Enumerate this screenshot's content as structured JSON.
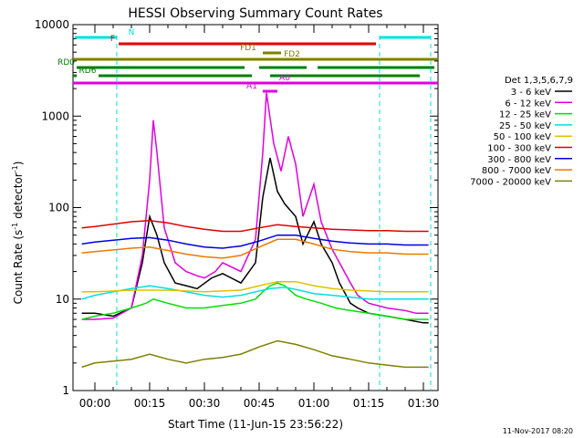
{
  "chart_data": {
    "type": "line",
    "title": "HESSI Observing Summary Count Rates",
    "xlabel": "Start Time (11-Jun-15 23:56:22)",
    "ylabel_main": "Count Rate (s",
    "ylabel_sup1": "-1",
    "ylabel_mid": " detector",
    "ylabel_sup2": "-1",
    "ylabel_end": ")",
    "y_scale": "log",
    "ylim": [
      1,
      10000
    ],
    "xlim_minutes": [
      -6,
      94
    ],
    "x_ticks": [
      {
        "minutes": 0,
        "label": "00:00"
      },
      {
        "minutes": 15,
        "label": "00:15"
      },
      {
        "minutes": 30,
        "label": "00:30"
      },
      {
        "minutes": 45,
        "label": "00:45"
      },
      {
        "minutes": 60,
        "label": "01:00"
      },
      {
        "minutes": 75,
        "label": "01:15"
      },
      {
        "minutes": 90,
        "label": "01:30"
      }
    ],
    "y_ticks": [
      {
        "value": 1,
        "label": "1"
      },
      {
        "value": 10,
        "label": "10"
      },
      {
        "value": 100,
        "label": "100"
      },
      {
        "value": 1000,
        "label": "1000"
      },
      {
        "value": 10000,
        "label": "10000"
      }
    ],
    "legend_title": "Det 1,3,5,6,7,9",
    "legend_position": "right",
    "series": [
      {
        "name": "3 - 6 keV",
        "color": "#000000",
        "points": [
          [
            -3.6,
            7
          ],
          [
            0,
            7
          ],
          [
            5,
            6.5
          ],
          [
            10,
            8
          ],
          [
            13,
            25
          ],
          [
            15,
            80
          ],
          [
            17,
            50
          ],
          [
            19,
            25
          ],
          [
            22,
            15
          ],
          [
            25,
            14
          ],
          [
            28,
            13
          ],
          [
            32,
            17
          ],
          [
            35,
            19
          ],
          [
            40,
            15
          ],
          [
            44,
            25
          ],
          [
            46,
            130
          ],
          [
            48,
            350
          ],
          [
            50,
            150
          ],
          [
            52,
            110
          ],
          [
            55,
            80
          ],
          [
            57,
            40
          ],
          [
            60,
            70
          ],
          [
            62,
            40
          ],
          [
            65,
            25
          ],
          [
            67,
            15
          ],
          [
            70,
            9
          ],
          [
            72,
            8
          ],
          [
            75,
            7
          ],
          [
            80,
            6.5
          ],
          [
            85,
            6
          ],
          [
            90,
            5.5
          ],
          [
            91.4,
            5.5
          ]
        ]
      },
      {
        "name": "6 - 12 keV",
        "color": "#e000e0",
        "points": [
          [
            -3.6,
            6
          ],
          [
            0,
            6
          ],
          [
            5,
            6.2
          ],
          [
            10,
            8
          ],
          [
            13,
            30
          ],
          [
            15,
            200
          ],
          [
            16,
            900
          ],
          [
            17,
            400
          ],
          [
            19,
            60
          ],
          [
            22,
            25
          ],
          [
            25,
            20
          ],
          [
            28,
            18
          ],
          [
            30,
            17
          ],
          [
            33,
            20
          ],
          [
            35,
            25
          ],
          [
            40,
            20
          ],
          [
            44,
            45
          ],
          [
            46,
            400
          ],
          [
            47,
            1800
          ],
          [
            49,
            500
          ],
          [
            51,
            250
          ],
          [
            53,
            600
          ],
          [
            55,
            300
          ],
          [
            57,
            80
          ],
          [
            60,
            180
          ],
          [
            62,
            70
          ],
          [
            65,
            35
          ],
          [
            67,
            25
          ],
          [
            70,
            15
          ],
          [
            72,
            11
          ],
          [
            75,
            9
          ],
          [
            80,
            8
          ],
          [
            85,
            7.5
          ],
          [
            88,
            7
          ],
          [
            91.4,
            7
          ]
        ]
      },
      {
        "name": "12 - 25 keV",
        "color": "#00e000",
        "points": [
          [
            -3.6,
            6
          ],
          [
            0,
            6.5
          ],
          [
            5,
            7
          ],
          [
            10,
            8
          ],
          [
            14,
            9
          ],
          [
            16,
            10
          ],
          [
            20,
            9
          ],
          [
            25,
            8
          ],
          [
            30,
            8
          ],
          [
            35,
            8.5
          ],
          [
            40,
            9
          ],
          [
            44,
            10
          ],
          [
            46,
            12
          ],
          [
            48,
            14
          ],
          [
            50,
            15
          ],
          [
            52,
            14
          ],
          [
            55,
            11
          ],
          [
            58,
            10
          ],
          [
            62,
            9
          ],
          [
            66,
            8
          ],
          [
            70,
            7.5
          ],
          [
            75,
            7
          ],
          [
            80,
            6.5
          ],
          [
            85,
            6
          ],
          [
            90,
            6
          ],
          [
            91.4,
            6
          ]
        ]
      },
      {
        "name": "25 - 50 keV",
        "color": "#00e0e0",
        "points": [
          [
            -3.6,
            10
          ],
          [
            0,
            11
          ],
          [
            5,
            12
          ],
          [
            10,
            13
          ],
          [
            15,
            14
          ],
          [
            20,
            13
          ],
          [
            25,
            12
          ],
          [
            30,
            11
          ],
          [
            35,
            10.5
          ],
          [
            40,
            11
          ],
          [
            44,
            12
          ],
          [
            48,
            13
          ],
          [
            52,
            13.5
          ],
          [
            56,
            12.5
          ],
          [
            60,
            11.5
          ],
          [
            65,
            11
          ],
          [
            70,
            10.5
          ],
          [
            75,
            10
          ],
          [
            80,
            10
          ],
          [
            85,
            10
          ],
          [
            90,
            10
          ],
          [
            91.4,
            10
          ]
        ]
      },
      {
        "name": "50 - 100 keV",
        "color": "#e0c000",
        "points": [
          [
            -3.6,
            12
          ],
          [
            0,
            12
          ],
          [
            10,
            12.5
          ],
          [
            20,
            12.5
          ],
          [
            30,
            12
          ],
          [
            40,
            12.5
          ],
          [
            45,
            14
          ],
          [
            50,
            15.5
          ],
          [
            55,
            15.5
          ],
          [
            60,
            14
          ],
          [
            65,
            13
          ],
          [
            70,
            12.5
          ],
          [
            80,
            12
          ],
          [
            90,
            12
          ],
          [
            91.4,
            12
          ]
        ]
      },
      {
        "name": "100 - 300 keV",
        "color": "#e00000",
        "points": [
          [
            -3.6,
            60
          ],
          [
            0,
            62
          ],
          [
            10,
            70
          ],
          [
            15,
            72
          ],
          [
            20,
            68
          ],
          [
            25,
            62
          ],
          [
            30,
            58
          ],
          [
            35,
            55
          ],
          [
            40,
            55
          ],
          [
            45,
            60
          ],
          [
            50,
            65
          ],
          [
            55,
            62
          ],
          [
            60,
            60
          ],
          [
            65,
            58
          ],
          [
            70,
            57
          ],
          [
            75,
            56
          ],
          [
            80,
            56
          ],
          [
            85,
            55
          ],
          [
            90,
            55
          ],
          [
            91.4,
            55
          ]
        ]
      },
      {
        "name": "300 - 800 keV",
        "color": "#0000e0",
        "points": [
          [
            -3.6,
            40
          ],
          [
            0,
            42
          ],
          [
            10,
            46
          ],
          [
            15,
            47
          ],
          [
            20,
            44
          ],
          [
            25,
            40
          ],
          [
            30,
            37
          ],
          [
            35,
            36
          ],
          [
            40,
            38
          ],
          [
            45,
            43
          ],
          [
            50,
            50
          ],
          [
            55,
            50
          ],
          [
            60,
            46
          ],
          [
            65,
            43
          ],
          [
            70,
            41
          ],
          [
            75,
            40
          ],
          [
            80,
            40
          ],
          [
            85,
            39
          ],
          [
            90,
            39
          ],
          [
            91.4,
            39
          ]
        ]
      },
      {
        "name": "800 - 7000 keV",
        "color": "#f07800",
        "points": [
          [
            -3.6,
            32
          ],
          [
            0,
            33
          ],
          [
            10,
            36
          ],
          [
            15,
            37
          ],
          [
            20,
            34
          ],
          [
            25,
            31
          ],
          [
            30,
            29
          ],
          [
            35,
            28
          ],
          [
            40,
            30
          ],
          [
            45,
            37
          ],
          [
            50,
            45
          ],
          [
            55,
            45
          ],
          [
            60,
            40
          ],
          [
            65,
            35
          ],
          [
            70,
            33
          ],
          [
            75,
            32
          ],
          [
            80,
            32
          ],
          [
            85,
            31
          ],
          [
            90,
            31
          ],
          [
            91.4,
            31
          ]
        ]
      },
      {
        "name": "7000 - 20000 keV",
        "color": "#808000",
        "points": [
          [
            -3.6,
            1.8
          ],
          [
            0,
            2
          ],
          [
            10,
            2.2
          ],
          [
            15,
            2.5
          ],
          [
            20,
            2.2
          ],
          [
            25,
            2
          ],
          [
            30,
            2.2
          ],
          [
            35,
            2.3
          ],
          [
            40,
            2.5
          ],
          [
            45,
            3
          ],
          [
            50,
            3.5
          ],
          [
            55,
            3.2
          ],
          [
            60,
            2.8
          ],
          [
            65,
            2.4
          ],
          [
            70,
            2.2
          ],
          [
            75,
            2
          ],
          [
            80,
            1.9
          ],
          [
            85,
            1.8
          ],
          [
            90,
            1.8
          ],
          [
            91.4,
            1.8
          ]
        ]
      }
    ],
    "flag_labels": [
      {
        "text": "N",
        "color": "#00e0e0"
      },
      {
        "text": "F",
        "color": "#e00000"
      },
      {
        "text": "FD1",
        "color": "#808000"
      },
      {
        "text": "FD2",
        "color": "#808000"
      },
      {
        "text": "RD0",
        "color": "#008000"
      },
      {
        "text": "RD6",
        "color": "#008000"
      },
      {
        "text": "A0",
        "color": "#e000e0"
      },
      {
        "text": "A1",
        "color": "#e000e0"
      }
    ],
    "footer_date": "11-Nov-2017 08:20"
  }
}
